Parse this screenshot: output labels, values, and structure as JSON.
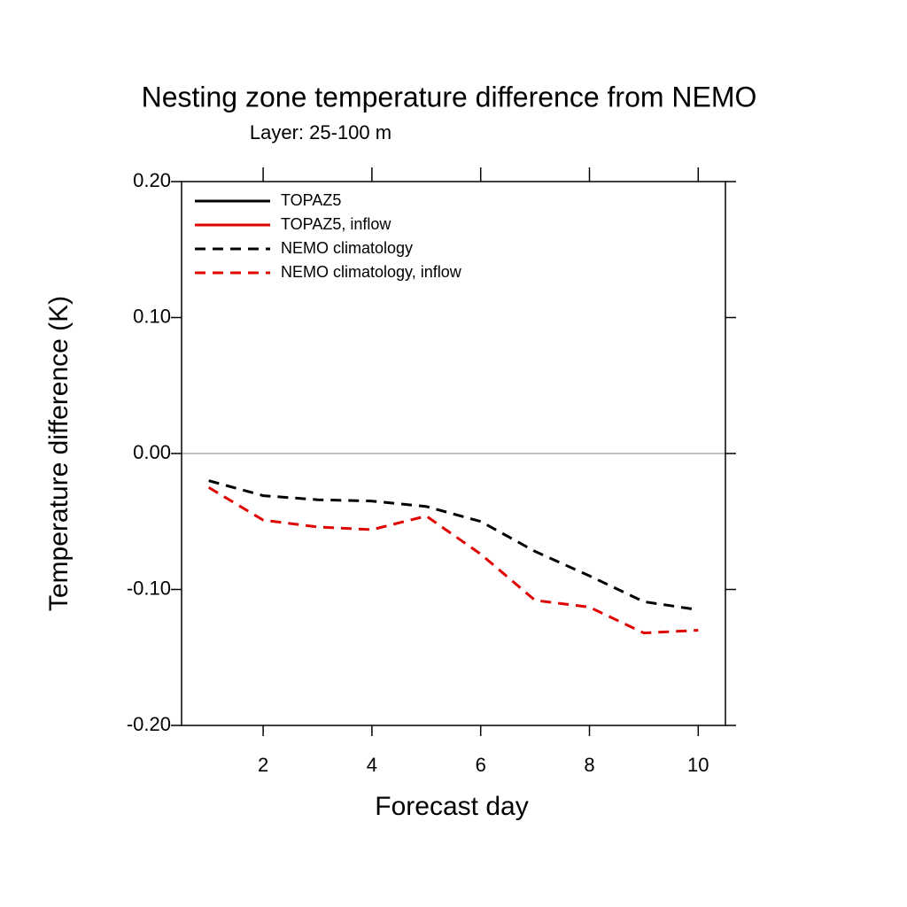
{
  "chart_data": {
    "type": "line",
    "title": "Nesting zone temperature difference from NEMO",
    "subtitle": "Layer: 25-100 m",
    "x_label": "Forecast day",
    "y_label": "Temperature difference (K)",
    "x": [
      1,
      2,
      3,
      4,
      5,
      6,
      7,
      8,
      9,
      10
    ],
    "series": [
      {
        "name": "TOPAZ5",
        "color": "#000000",
        "dash": false,
        "values": [
          null,
          null,
          null,
          null,
          null,
          null,
          null,
          null,
          null,
          null
        ]
      },
      {
        "name": "TOPAZ5, inflow",
        "color": "#e00000",
        "dash": false,
        "values": [
          null,
          null,
          null,
          null,
          null,
          null,
          null,
          null,
          null,
          null
        ]
      },
      {
        "name": "NEMO climatology",
        "color": "#000000",
        "dash": true,
        "values": [
          -0.02,
          -0.031,
          -0.034,
          -0.035,
          -0.039,
          -0.05,
          -0.072,
          -0.09,
          -0.109,
          -0.115
        ]
      },
      {
        "name": "NEMO climatology, inflow",
        "color": "#e00000",
        "dash": true,
        "values": [
          -0.025,
          -0.049,
          -0.054,
          -0.056,
          -0.046,
          -0.074,
          -0.108,
          -0.113,
          -0.132,
          -0.13
        ]
      }
    ],
    "xlim": [
      0.5,
      10.5
    ],
    "ylim": [
      -0.2,
      0.2
    ],
    "xticks": [
      2,
      4,
      6,
      8,
      10
    ],
    "yticks": [
      {
        "value": 0.2,
        "label": "0.20"
      },
      {
        "value": 0.1,
        "label": "0.10"
      },
      {
        "value": 0,
        "label": "0.00"
      },
      {
        "value": -0.1,
        "label": "-0.10"
      },
      {
        "value": -0.2,
        "label": "-0.20"
      }
    ],
    "zero_line": true,
    "legend": "upper left"
  }
}
